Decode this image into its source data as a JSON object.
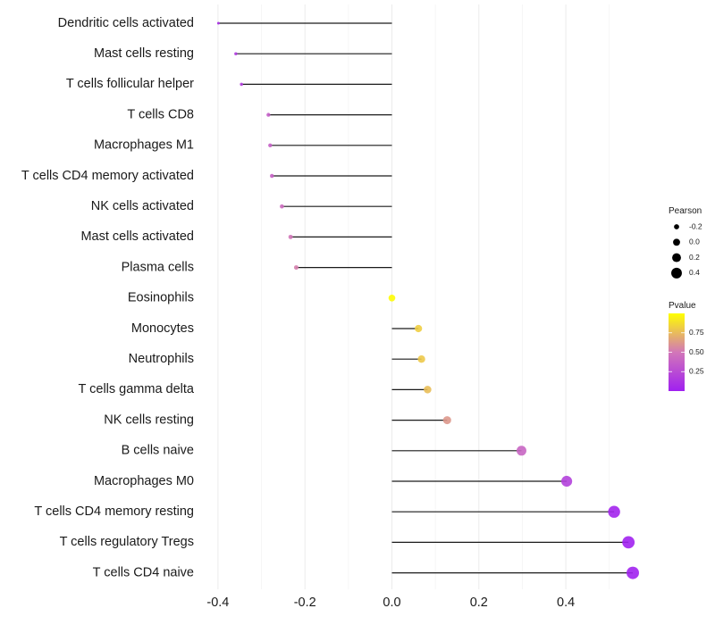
{
  "chart_data": {
    "type": "lollipop",
    "title": "",
    "xlabel": "",
    "ylabel": "",
    "xlim": [
      -0.42,
      0.56
    ],
    "x_ticks": [
      -0.4,
      -0.2,
      0.0,
      0.2,
      0.4
    ],
    "x_tick_labels": [
      "-0.4",
      "-0.2",
      "0.0",
      "0.2",
      "0.4"
    ],
    "grid": true,
    "categories": [
      "Dendritic cells activated",
      "Mast cells resting",
      "T cells follicular helper",
      "T cells CD8",
      "Macrophages M1",
      "T cells CD4 memory activated",
      "NK cells activated",
      "Mast cells activated",
      "Plasma cells",
      "Eosinophils",
      "Monocytes",
      "Neutrophils",
      "T cells gamma delta",
      "NK cells resting",
      "B cells naive",
      "Macrophages M0",
      "T cells CD4 memory resting",
      "T cells regulatory  Tregs",
      "T cells CD4 naive"
    ],
    "pearson": [
      -0.399,
      -0.359,
      -0.346,
      -0.284,
      -0.28,
      -0.276,
      -0.253,
      -0.233,
      -0.22,
      0.0,
      0.061,
      0.068,
      0.082,
      0.127,
      0.298,
      0.402,
      0.511,
      0.544,
      0.554
    ],
    "pvalue": [
      0.08,
      0.15,
      0.17,
      0.36,
      0.37,
      0.38,
      0.44,
      0.5,
      0.53,
      0.99,
      0.82,
      0.8,
      0.76,
      0.62,
      0.4,
      0.19,
      0.03,
      0.01,
      0.01
    ],
    "legend": {
      "position": "right",
      "size_title": "Pearson",
      "size_entries": [
        {
          "label": "-0.2",
          "value": -0.2
        },
        {
          "label": "0.0",
          "value": 0.0
        },
        {
          "label": "0.2",
          "value": 0.2
        },
        {
          "label": "0.4",
          "value": 0.4
        }
      ],
      "color_title": "Pvalue",
      "color_ticks": [
        {
          "label": "0.75",
          "value": 0.75
        },
        {
          "label": "0.50",
          "value": 0.5
        },
        {
          "label": "0.25",
          "value": 0.25
        }
      ],
      "color_range": [
        0.0,
        1.0
      ],
      "color_low": "#a020f0",
      "color_mid": "#d277b8",
      "color_high": "#ffff00"
    }
  }
}
